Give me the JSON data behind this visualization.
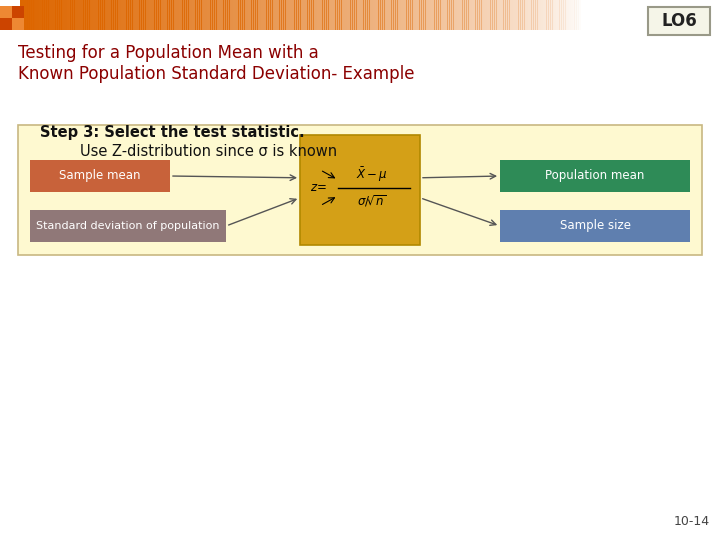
{
  "title_line1": "Testing for a Population Mean with a",
  "title_line2": "Known Population Standard Deviation- Example",
  "title_color": "#8B0000",
  "lo_text": "LO6",
  "lo_bg": "#f5f5e8",
  "lo_border": "#999988",
  "step_bold": "Step 3: Select the test statistic.",
  "step_normal": "Use Z-distribution since σ is known",
  "bg_color": "#ffffff",
  "diagram_bg": "#fef9d0",
  "diagram_border": "#c8b882",
  "center_box_bg": "#d4a017",
  "center_box_border": "#b08800",
  "sample_mean_bg": "#c8623a",
  "sample_mean_text": "Sample mean",
  "std_dev_bg": "#907878",
  "std_dev_text": "Standard deviation of population",
  "pop_mean_bg": "#2e8b57",
  "pop_mean_text": "Population mean",
  "sample_size_bg": "#5f7faf",
  "sample_size_text": "Sample size",
  "page_num": "10-14",
  "arrow_color": "#555555",
  "header_orange": "#dd6600",
  "header_square1": "#cc4400",
  "header_square2": "#ee8833"
}
